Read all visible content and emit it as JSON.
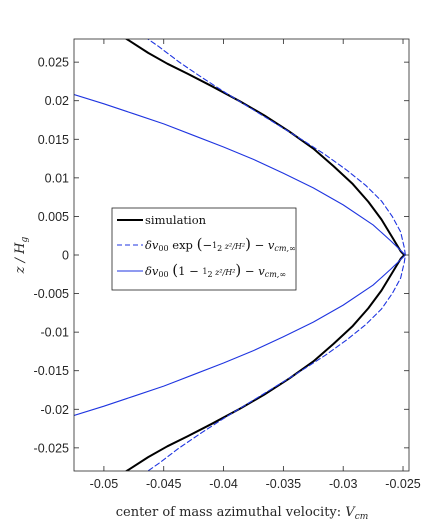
{
  "chart_data": {
    "type": "line",
    "xlabel": "center of mass azimuthal velocity: V_cm",
    "ylabel": "z/H_g",
    "xlim": [
      -0.0525,
      -0.0245
    ],
    "ylim": [
      -0.028,
      0.028
    ],
    "xticks": [
      -0.05,
      -0.045,
      -0.04,
      -0.035,
      -0.03,
      -0.025
    ],
    "xtick_labels": [
      "-0.05",
      "-0.045",
      "-0.04",
      "-0.035",
      "-0.03",
      "-0.025"
    ],
    "yticks": [
      0.025,
      0.02,
      0.015,
      0.01,
      0.005,
      0,
      -0.005,
      -0.01,
      -0.015,
      -0.02,
      -0.025
    ],
    "ytick_labels": [
      "0.025",
      "0.02",
      "0.015",
      "0.01",
      "0.005",
      "0",
      "-0.005",
      "-0.01",
      "-0.015",
      "-0.02",
      "-0.025"
    ],
    "grid": false,
    "legend_position": "center-left",
    "series": [
      {
        "name": "simulation",
        "color": "#000000",
        "style": "solid",
        "points": [
          [
            -0.0484,
            0.0283
          ],
          [
            -0.0463,
            0.0262
          ],
          [
            -0.0447,
            0.0248
          ],
          [
            -0.043,
            0.0235
          ],
          [
            -0.041,
            0.0219
          ],
          [
            -0.0386,
            0.0199
          ],
          [
            -0.0366,
            0.0181
          ],
          [
            -0.0345,
            0.016
          ],
          [
            -0.0325,
            0.0138
          ],
          [
            -0.0308,
            0.0115
          ],
          [
            -0.0292,
            0.0092
          ],
          [
            -0.0279,
            0.0069
          ],
          [
            -0.0268,
            0.0046
          ],
          [
            -0.0259,
            0.0023
          ],
          [
            -0.0252,
            0.0005
          ],
          [
            -0.0249,
            0.0
          ],
          [
            -0.0252,
            -0.0005
          ],
          [
            -0.0259,
            -0.0023
          ],
          [
            -0.0268,
            -0.0046
          ],
          [
            -0.0279,
            -0.0069
          ],
          [
            -0.0292,
            -0.0092
          ],
          [
            -0.0308,
            -0.0115
          ],
          [
            -0.0325,
            -0.0138
          ],
          [
            -0.0345,
            -0.016
          ],
          [
            -0.0366,
            -0.0181
          ],
          [
            -0.0386,
            -0.0199
          ],
          [
            -0.041,
            -0.0219
          ],
          [
            -0.043,
            -0.0235
          ],
          [
            -0.0447,
            -0.0248
          ],
          [
            -0.0463,
            -0.0262
          ],
          [
            -0.0484,
            -0.0283
          ]
        ]
      },
      {
        "name": "δv00 exp(−½ z²/H²) − v_cm,∞",
        "color": "#1f35e0",
        "style": "dashed",
        "points": [
          [
            -0.0466,
            0.0283
          ],
          [
            -0.0454,
            0.027
          ],
          [
            -0.0437,
            0.025
          ],
          [
            -0.0418,
            0.023
          ],
          [
            -0.0398,
            0.021
          ],
          [
            -0.0377,
            0.019
          ],
          [
            -0.0356,
            0.017
          ],
          [
            -0.0335,
            0.015
          ],
          [
            -0.0315,
            0.013
          ],
          [
            -0.0297,
            0.011
          ],
          [
            -0.0281,
            0.009
          ],
          [
            -0.0268,
            0.007
          ],
          [
            -0.0259,
            0.005
          ],
          [
            -0.0252,
            0.003
          ],
          [
            -0.0249,
            0.001
          ],
          [
            -0.0248,
            0.0
          ],
          [
            -0.0249,
            -0.001
          ],
          [
            -0.0252,
            -0.003
          ],
          [
            -0.0259,
            -0.005
          ],
          [
            -0.0268,
            -0.007
          ],
          [
            -0.0281,
            -0.009
          ],
          [
            -0.0297,
            -0.011
          ],
          [
            -0.0315,
            -0.013
          ],
          [
            -0.0335,
            -0.015
          ],
          [
            -0.0356,
            -0.017
          ],
          [
            -0.0377,
            -0.019
          ],
          [
            -0.0398,
            -0.021
          ],
          [
            -0.0418,
            -0.023
          ],
          [
            -0.0437,
            -0.025
          ],
          [
            -0.0454,
            -0.027
          ],
          [
            -0.0466,
            -0.0283
          ]
        ]
      },
      {
        "name": "δv00 (1 − ½ z²/H²) − v_cm,∞",
        "color": "#1f35e0",
        "style": "solid",
        "points": [
          [
            -0.0525,
            0.0208
          ],
          [
            -0.05,
            0.0196
          ],
          [
            -0.0475,
            0.0183
          ],
          [
            -0.045,
            0.017
          ],
          [
            -0.0425,
            0.0155
          ],
          [
            -0.04,
            0.014
          ],
          [
            -0.0375,
            0.0124
          ],
          [
            -0.035,
            0.0106
          ],
          [
            -0.0325,
            0.0087
          ],
          [
            -0.03,
            0.0065
          ],
          [
            -0.0275,
            0.0039
          ],
          [
            -0.026,
            0.0018
          ],
          [
            -0.0248,
            0.0
          ],
          [
            -0.026,
            -0.0018
          ],
          [
            -0.0275,
            -0.0039
          ],
          [
            -0.03,
            -0.0065
          ],
          [
            -0.0325,
            -0.0087
          ],
          [
            -0.035,
            -0.0106
          ],
          [
            -0.0375,
            -0.0124
          ],
          [
            -0.04,
            -0.014
          ],
          [
            -0.0425,
            -0.0155
          ],
          [
            -0.045,
            -0.017
          ],
          [
            -0.0475,
            -0.0183
          ],
          [
            -0.05,
            -0.0196
          ],
          [
            -0.0525,
            -0.0208
          ]
        ]
      }
    ]
  }
}
